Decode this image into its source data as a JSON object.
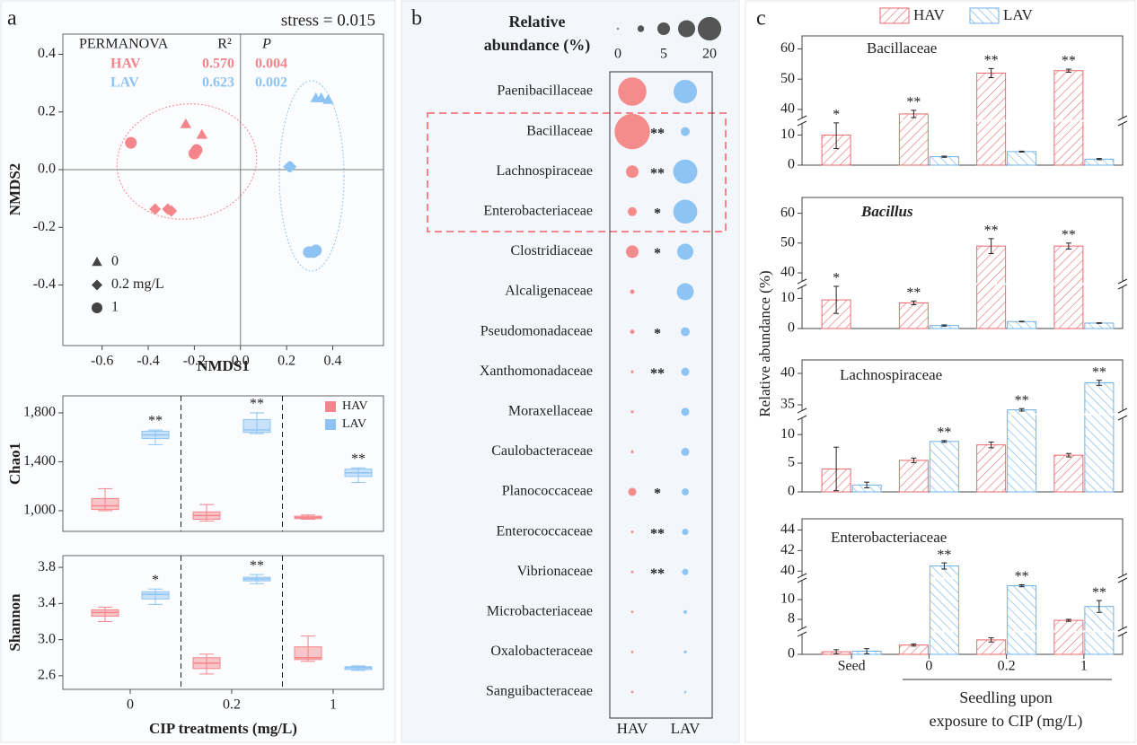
{
  "chart_data": [
    {
      "type": "scatter",
      "panel": "a",
      "annotation": "stress = 0.015",
      "xlabel": "NMDS1",
      "ylabel": "NMDS2",
      "xlim": [
        -0.77,
        0.62
      ],
      "ylim": [
        -0.61,
        0.47
      ],
      "xticks": [
        -0.6,
        -0.4,
        -0.2,
        {
          "value": 0,
          "label": "0.0"
        },
        0.2,
        0.4
      ],
      "yticks": [
        -0.4,
        -0.2,
        {
          "value": 0,
          "label": "0.0"
        },
        0.2,
        0.4
      ],
      "permanova": {
        "header": [
          "PERMANOVA",
          "R²",
          "P"
        ],
        "rows": [
          [
            "0.570",
            "0.004"
          ],
          [
            "0.623",
            "0.002"
          ]
        ]
      },
      "markers": [
        {
          "label": "0",
          "shape": "triangle"
        },
        {
          "label": "0.2 mg/L",
          "shape": "diamond"
        },
        {
          "label": "1",
          "shape": "circle"
        }
      ],
      "series": [
        {
          "name": "HAV",
          "color": "#f4858a",
          "groups": [
            {
              "x": [
                -0.237,
                -0.167
              ],
              "values": [
                0.158,
                0.121
              ]
            },
            {
              "x": [
                -0.37,
                -0.315,
                -0.3
              ],
              "values": [
                -0.137,
                -0.137,
                -0.143
              ]
            },
            {
              "x": [
                -0.475,
                -0.2,
                -0.19
              ],
              "values": [
                0.093,
                0.056,
                0.068
              ]
            }
          ]
        },
        {
          "name": "LAV",
          "color": "#8ec4f4",
          "groups": [
            {
              "x": [
                0.327,
                0.35,
                0.38
              ],
              "values": [
                0.248,
                0.248,
                0.242
              ]
            },
            {
              "x": [
                0.21,
                0.218
              ],
              "values": [
                0.01,
                0.01
              ]
            },
            {
              "x": [
                0.296,
                0.315,
                0.327
              ],
              "values": [
                -0.286,
                -0.286,
                -0.28
              ]
            }
          ]
        }
      ]
    },
    {
      "type": "box",
      "ylabel": "Chao1",
      "legend": "upper right",
      "ylim": [
        831,
        1939
      ],
      "yticks": [
        {
          "value": 1000,
          "label": "1,000"
        },
        {
          "value": 1400,
          "label": "1,400"
        },
        {
          "value": 1800,
          "label": "1,800"
        }
      ],
      "series": [
        {
          "name": "HAV",
          "color": "#f4858a",
          "min": [
            1000,
            915,
            930
          ],
          "q1": [
            1010,
            930,
            935
          ],
          "median": [
            1040,
            960,
            945
          ],
          "q3": [
            1100,
            990,
            955
          ],
          "max": [
            1180,
            1050,
            965
          ]
        },
        {
          "name": "LAV",
          "color": "#8ec4f4",
          "min": [
            1540,
            1630,
            1230
          ],
          "q1": [
            1590,
            1640,
            1280
          ],
          "median": [
            1620,
            1660,
            1310
          ],
          "q3": [
            1650,
            1745,
            1340
          ],
          "max": [
            1660,
            1800,
            1350
          ],
          "labels": [
            "**",
            "**",
            "**"
          ]
        }
      ]
    },
    {
      "type": "box",
      "ylabel": "Shannon",
      "xlabel": "CIP treatments (mg/L)",
      "categories": [
        "0",
        "0.2",
        "1"
      ],
      "ylim": [
        2.45,
        3.93
      ],
      "yticks": [
        2.6,
        {
          "value": 3,
          "label": "3.0"
        },
        3.4,
        3.8
      ],
      "series": [
        {
          "name": "HAV",
          "color": "#f4858a",
          "min": [
            3.2,
            2.62,
            2.76
          ],
          "q1": [
            3.26,
            2.68,
            2.78
          ],
          "median": [
            3.3,
            2.74,
            2.8
          ],
          "q3": [
            3.33,
            2.8,
            2.92
          ],
          "max": [
            3.36,
            2.84,
            3.04
          ]
        },
        {
          "name": "LAV",
          "color": "#8ec4f4",
          "min": [
            3.39,
            3.62,
            2.66
          ],
          "q1": [
            3.45,
            3.65,
            2.67
          ],
          "median": [
            3.5,
            3.67,
            2.69
          ],
          "q3": [
            3.53,
            3.69,
            2.7
          ],
          "max": [
            3.56,
            3.72,
            2.71
          ],
          "labels": [
            "*",
            "**",
            null
          ]
        }
      ]
    },
    {
      "type": "bubble",
      "panel": "b",
      "size_legend": {
        "title": [
          "Relative",
          "abundance (%)"
        ],
        "values": [
          0,
          1,
          5,
          10,
          20
        ],
        "labels": [
          "0",
          null,
          "5",
          null,
          "20"
        ]
      },
      "categories": [
        "Paenibacillaceae",
        "Bacillaceae",
        "Lachnospiraceae",
        "Enterobacteriaceae",
        "Clostridiaceae",
        "Alcaligenaceae",
        "Pseudomonadaceae",
        "Xanthomonadaceae",
        "Moraxellaceae",
        "Caulobacteraceae",
        "Planococcaceae",
        "Enterococcaceae",
        "Vibrionaceae",
        "Microbacteriaceae",
        "Oxalobacteraceae",
        "Sanguibacteraceae"
      ],
      "series": [
        {
          "name": "HAV",
          "color": "#f48c8c",
          "values": [
            30,
            48,
            4.9,
            2.2,
            5,
            0.3,
            0.3,
            0.05,
            0.05,
            0.05,
            1.7,
            0.03,
            0.03,
            0.02,
            0.02,
            0.02
          ]
        },
        {
          "name": "LAV",
          "color": "#8ec4f4",
          "values": [
            20,
            2.2,
            21.4,
            21,
            8.8,
            9.9,
            2.2,
            1.7,
            1.7,
            1.7,
            1.2,
            0.86,
            0.86,
            0.14,
            0.05,
            0.01
          ]
        }
      ],
      "significance": [
        null,
        "**",
        "**",
        "*",
        "*",
        null,
        "*",
        "**",
        null,
        null,
        "*",
        "**",
        "**",
        null,
        null,
        null
      ]
    },
    {
      "type": "broken_bar",
      "panel": "c",
      "title": "Bacillaceae",
      "ylabel": "Relative abundance (%)",
      "legend": "top",
      "segments": [
        {
          "ylim": [
            0,
            14
          ],
          "yticks": [
            0,
            10
          ]
        },
        {
          "ylim": [
            37,
            64
          ],
          "yticks": [
            40,
            50,
            60
          ]
        }
      ],
      "series": [
        {
          "name": "HAV",
          "color": "#e8696d",
          "values": [
            10,
            38.5,
            52,
            52.8
          ],
          "errors": [
            4.5,
            1.2,
            1.5,
            0.5
          ],
          "labels": [
            "*",
            "**",
            "**",
            "**"
          ]
        },
        {
          "name": "LAV",
          "color": "#6fb1e8",
          "values": [
            null,
            2.8,
            4.5,
            2
          ],
          "errors": [
            null,
            0.2,
            0.15,
            0.2
          ]
        }
      ]
    },
    {
      "type": "broken_bar",
      "title": "Bacillus",
      "italic": true,
      "segments": [
        {
          "ylim": [
            0,
            14
          ],
          "yticks": [
            0,
            10
          ]
        },
        {
          "ylim": [
            37,
            65
          ],
          "yticks": [
            40,
            50,
            60
          ]
        }
      ],
      "series": [
        {
          "name": "HAV",
          "color": "#e8696d",
          "values": [
            9.5,
            8.5,
            49,
            49
          ],
          "errors": [
            4.5,
            0.6,
            2.5,
            1
          ],
          "labels": [
            "*",
            "**",
            "**",
            "**"
          ]
        },
        {
          "name": "LAV",
          "color": "#6fb1e8",
          "values": [
            null,
            1,
            2.3,
            1.8
          ],
          "errors": [
            null,
            0.2,
            0.1,
            0.1
          ]
        }
      ]
    },
    {
      "type": "broken_bar",
      "title": "Lachnospiraceae",
      "segments": [
        {
          "ylim": [
            0,
            13
          ],
          "yticks": [
            0,
            5,
            10
          ]
        },
        {
          "ylim": [
            34,
            42
          ],
          "yticks": [
            35,
            40
          ]
        }
      ],
      "series": [
        {
          "name": "HAV",
          "color": "#e8696d",
          "values": [
            4,
            5.5,
            8.2,
            6.4
          ],
          "errors": [
            3.8,
            0.4,
            0.5,
            0.3
          ]
        },
        {
          "name": "LAV",
          "color": "#6fb1e8",
          "values": [
            1.2,
            8.8,
            34.2,
            38.5
          ],
          "errors": [
            0.5,
            0.15,
            0.2,
            0.4
          ],
          "labels": [
            null,
            "**",
            "**",
            "**"
          ]
        }
      ]
    },
    {
      "type": "broken_bar",
      "title": "Enterobacteriaceae",
      "categories": [
        "Seed",
        "0",
        "0.2",
        "1"
      ],
      "xlabel": [
        "Seedling upon",
        "exposure to CIP (mg/L)"
      ],
      "segments": [
        {
          "ylim": [
            0,
            2
          ],
          "yticks": [
            0
          ]
        },
        {
          "ylim": [
            7,
            12
          ],
          "yticks": [
            8,
            10
          ]
        },
        {
          "ylim": [
            39.5,
            45
          ],
          "yticks": [
            40,
            42,
            44
          ]
        }
      ],
      "series": [
        {
          "name": "HAV",
          "color": "#e8696d",
          "values": [
            0.25,
            0.9,
            1.4,
            7.9
          ],
          "errors": [
            0.2,
            0.1,
            0.2,
            0.1
          ]
        },
        {
          "name": "LAV",
          "color": "#6fb1e8",
          "values": [
            0.3,
            40.5,
            11.4,
            9.3
          ],
          "errors": [
            0.25,
            0.3,
            0.1,
            0.6
          ],
          "labels": [
            null,
            "**",
            "**",
            "**"
          ]
        }
      ]
    }
  ]
}
